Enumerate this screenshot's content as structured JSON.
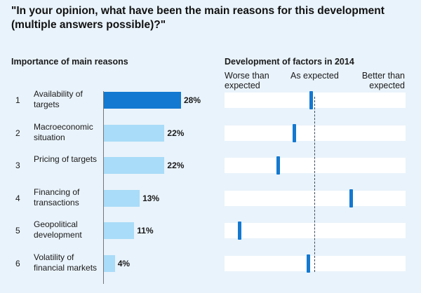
{
  "question": "\"In your opinion, what have been the main reasons for this development (multiple answers possible)?\"",
  "colors": {
    "background": "#e9f3fb",
    "bar_highlight": "#1479d0",
    "bar_normal": "#a9dcf8",
    "marker": "#1479d0",
    "track": "#ffffff"
  },
  "chart_data": [
    {
      "type": "bar",
      "orientation": "horizontal",
      "title": "Importance of main reasons",
      "categories": [
        {
          "rank": "1",
          "label": "Availability of targets"
        },
        {
          "rank": "2",
          "label": "Macroeconomic situation"
        },
        {
          "rank": "3",
          "label": "Pricing of targets"
        },
        {
          "rank": "4",
          "label": "Financing of transactions"
        },
        {
          "rank": "5",
          "label": "Geopolitical development"
        },
        {
          "rank": "6",
          "label": "Volatility of financial markets"
        }
      ],
      "values": [
        28,
        22,
        22,
        13,
        11,
        4
      ],
      "value_labels": [
        "28%",
        "22%",
        "22%",
        "13%",
        "11%",
        "4%"
      ],
      "unit": "%",
      "xlim": [
        0,
        28
      ],
      "highlight_index": 0
    },
    {
      "type": "scatter",
      "title": "Development of factors in 2014",
      "scale_labels": {
        "left": "Worse than expected",
        "center": "As expected",
        "right": "Better than expected"
      },
      "xlim": [
        -1,
        1
      ],
      "expected_value": 0,
      "values": [
        -0.04,
        -0.23,
        -0.41,
        0.4,
        -0.83,
        -0.07
      ]
    }
  ]
}
